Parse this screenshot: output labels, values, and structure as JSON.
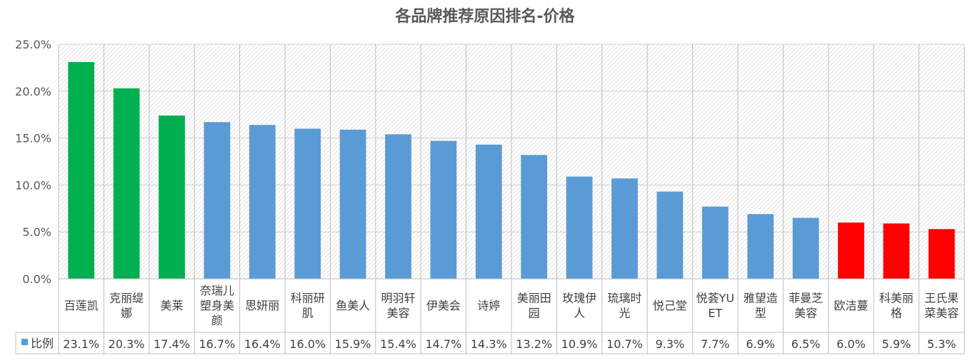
{
  "chart_data": {
    "type": "bar",
    "title": "各品牌推荐原因排名-价格",
    "xlabel": "",
    "ylabel": "",
    "ylim": [
      0,
      25
    ],
    "yticks": [
      0,
      5,
      10,
      15,
      20,
      25
    ],
    "ytick_labels": [
      "0.0%",
      "5.0%",
      "10.0%",
      "15.0%",
      "20.0%",
      "25.0%"
    ],
    "grid": true,
    "legend": "data-table-left",
    "categories": [
      "百莲凯",
      "克丽缇娜",
      "美莱",
      "奈瑞儿塑身美颜",
      "思妍丽",
      "科丽研肌",
      "鱼美人",
      "明羽轩美容",
      "伊美会",
      "诗婷",
      "美丽田园",
      "玫瑰伊人",
      "琉璃时光",
      "悦己堂",
      "悦荟YUET",
      "雅望造型",
      "菲曼芝美容",
      "欧洁蔓",
      "科美丽格",
      "王氏果菜美容"
    ],
    "category_lines": [
      [
        "百莲凯"
      ],
      [
        "克丽缇",
        "娜"
      ],
      [
        "美莱"
      ],
      [
        "奈瑞儿",
        "塑身美",
        "颜"
      ],
      [
        "思妍丽"
      ],
      [
        "科丽研",
        "肌"
      ],
      [
        "鱼美人"
      ],
      [
        "明羽轩",
        "美容"
      ],
      [
        "伊美会"
      ],
      [
        "诗婷"
      ],
      [
        "美丽田",
        "园"
      ],
      [
        "玫瑰伊",
        "人"
      ],
      [
        "琉璃时",
        "光"
      ],
      [
        "悦己堂"
      ],
      [
        "悦荟YU",
        "ET"
      ],
      [
        "雅望造",
        "型"
      ],
      [
        "菲曼芝",
        "美容"
      ],
      [
        "欧洁蔓"
      ],
      [
        "科美丽",
        "格"
      ],
      [
        "王氏果",
        "菜美容"
      ]
    ],
    "series": [
      {
        "name": "比例",
        "values": [
          23.1,
          20.3,
          17.4,
          16.7,
          16.4,
          16.0,
          15.9,
          15.4,
          14.7,
          14.3,
          13.2,
          10.9,
          10.7,
          9.3,
          7.7,
          6.9,
          6.5,
          6.0,
          5.9,
          5.3
        ],
        "value_labels": [
          "23.1%",
          "20.3%",
          "17.4%",
          "16.7%",
          "16.4%",
          "16.0%",
          "15.9%",
          "15.4%",
          "14.7%",
          "14.3%",
          "13.2%",
          "10.9%",
          "10.7%",
          "9.3%",
          "7.7%",
          "6.9%",
          "6.5%",
          "6.0%",
          "5.9%",
          "5.3%"
        ]
      }
    ],
    "colors": {
      "top": "#00B050",
      "middle": "#5B9BD5",
      "bottom": "#FF0000",
      "legend_marker": "#5B9BD5"
    },
    "bar_color_groups": [
      "top",
      "top",
      "top",
      "middle",
      "middle",
      "middle",
      "middle",
      "middle",
      "middle",
      "middle",
      "middle",
      "middle",
      "middle",
      "middle",
      "middle",
      "middle",
      "middle",
      "bottom",
      "bottom",
      "bottom"
    ]
  }
}
